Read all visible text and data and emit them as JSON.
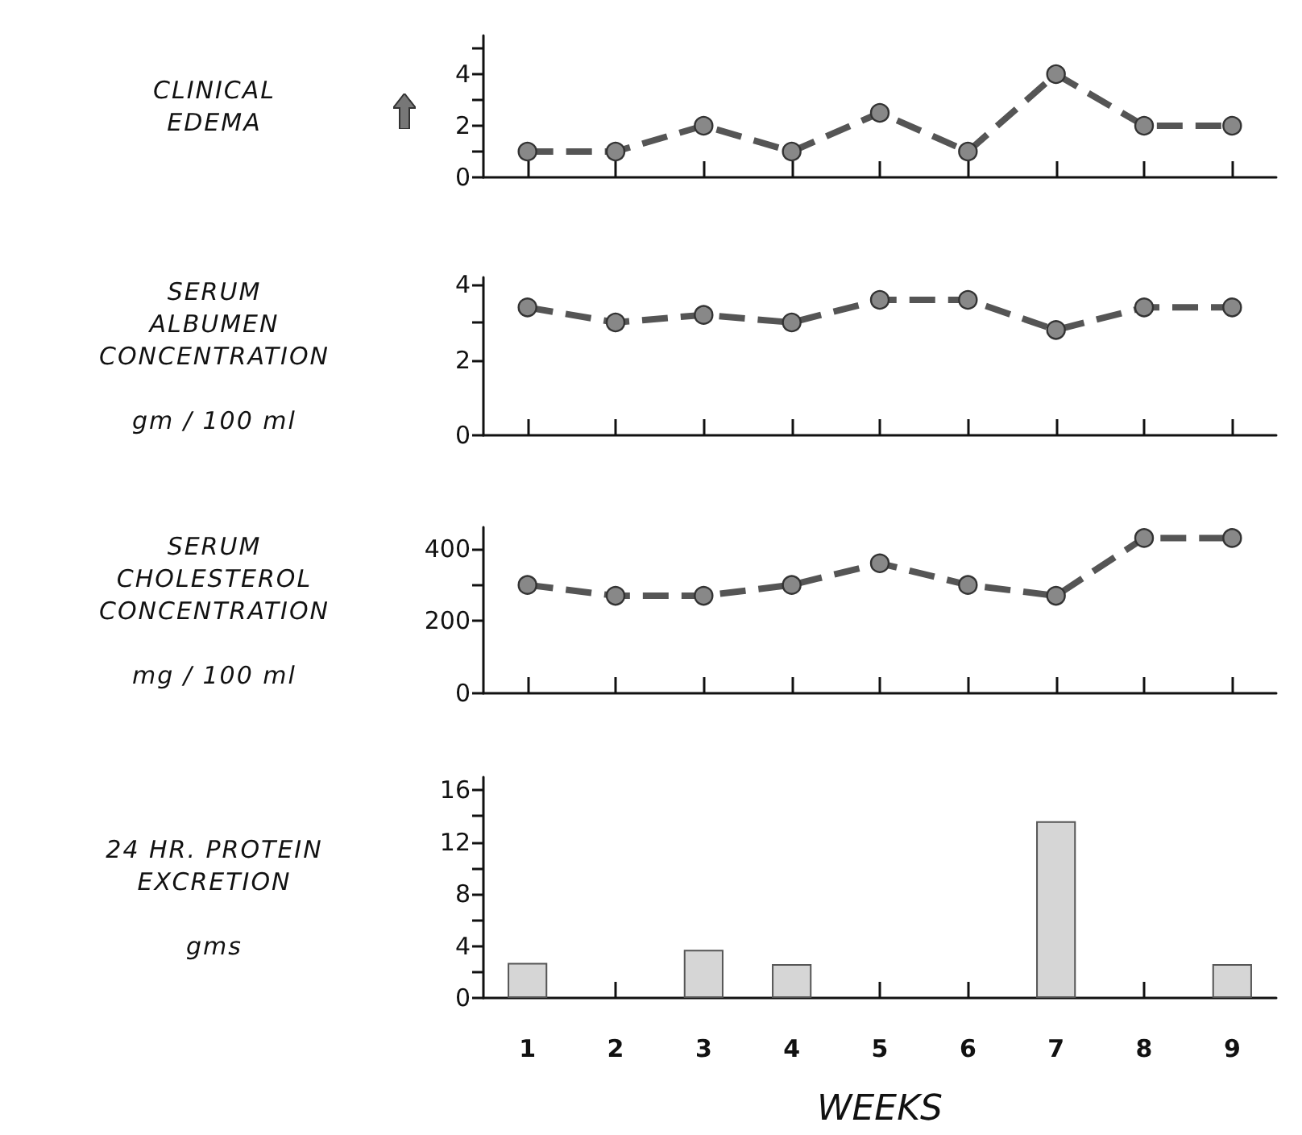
{
  "chart_data": [
    {
      "type": "line",
      "ylabel": "CLINICAL\nEDEMA",
      "categories": [
        "1",
        "2",
        "3",
        "4",
        "5",
        "6",
        "7",
        "8",
        "9"
      ],
      "series": [
        {
          "color": "#555555",
          "values": [
            1,
            1,
            2,
            1,
            2.5,
            1,
            4,
            2,
            2
          ]
        }
      ],
      "ylim": [
        0,
        5.5
      ],
      "yticks": [
        0,
        {
          "value": 1,
          "label": null
        },
        2,
        {
          "value": 3,
          "label": null
        },
        4,
        {
          "value": 5,
          "label": null
        }
      ],
      "marker": "circle",
      "line_style": "dashed",
      "tick_labels": "y"
    },
    {
      "type": "line",
      "ylabel": "SERUM\nALBUMEN\nCONCENTRATION\n\ngm / 100 ml",
      "categories": [
        "1",
        "2",
        "3",
        "4",
        "5",
        "6",
        "7",
        "8",
        "9"
      ],
      "series": [
        {
          "color": "#555555",
          "values": [
            3.4,
            3.0,
            3.2,
            3.0,
            3.6,
            3.6,
            2.8,
            3.4,
            3.4
          ]
        }
      ],
      "ylim": [
        0,
        4.2
      ],
      "yticks": [
        0,
        2,
        {
          "value": 3,
          "label": null
        },
        4
      ],
      "marker": "circle",
      "line_style": "dashed",
      "tick_labels": "y"
    },
    {
      "type": "line",
      "ylabel": "SERUM\nCHOLESTEROL\nCONCENTRATION\n\nmg / 100 ml",
      "categories": [
        "1",
        "2",
        "3",
        "4",
        "5",
        "6",
        "7",
        "8",
        "9"
      ],
      "series": [
        {
          "color": "#555555",
          "values": [
            300,
            270,
            270,
            300,
            360,
            300,
            270,
            430,
            430
          ]
        }
      ],
      "ylim": [
        0,
        460
      ],
      "yticks": [
        0,
        200,
        {
          "value": 300,
          "label": null
        },
        400
      ],
      "marker": "circle",
      "line_style": "dashed",
      "tick_labels": "y"
    },
    {
      "type": "bar",
      "ylabel": "24 HR. PROTEIN\nEXCRETION\n\ngms",
      "xlabel": "WEEKS",
      "categories": [
        "1",
        "2",
        "3",
        "4",
        "5",
        "6",
        "7",
        "8",
        "9"
      ],
      "series": [
        {
          "color": "#d6d6d6",
          "values": [
            2.7,
            null,
            3.7,
            2.6,
            null,
            null,
            13.6,
            null,
            2.6
          ]
        }
      ],
      "ylim": [
        0,
        17
      ],
      "yticks": [
        0,
        {
          "value": 2,
          "label": null
        },
        4,
        {
          "value": 6,
          "label": null
        },
        8,
        {
          "value": 10,
          "label": null
        },
        12,
        {
          "value": 14,
          "label": null
        },
        16
      ]
    }
  ]
}
